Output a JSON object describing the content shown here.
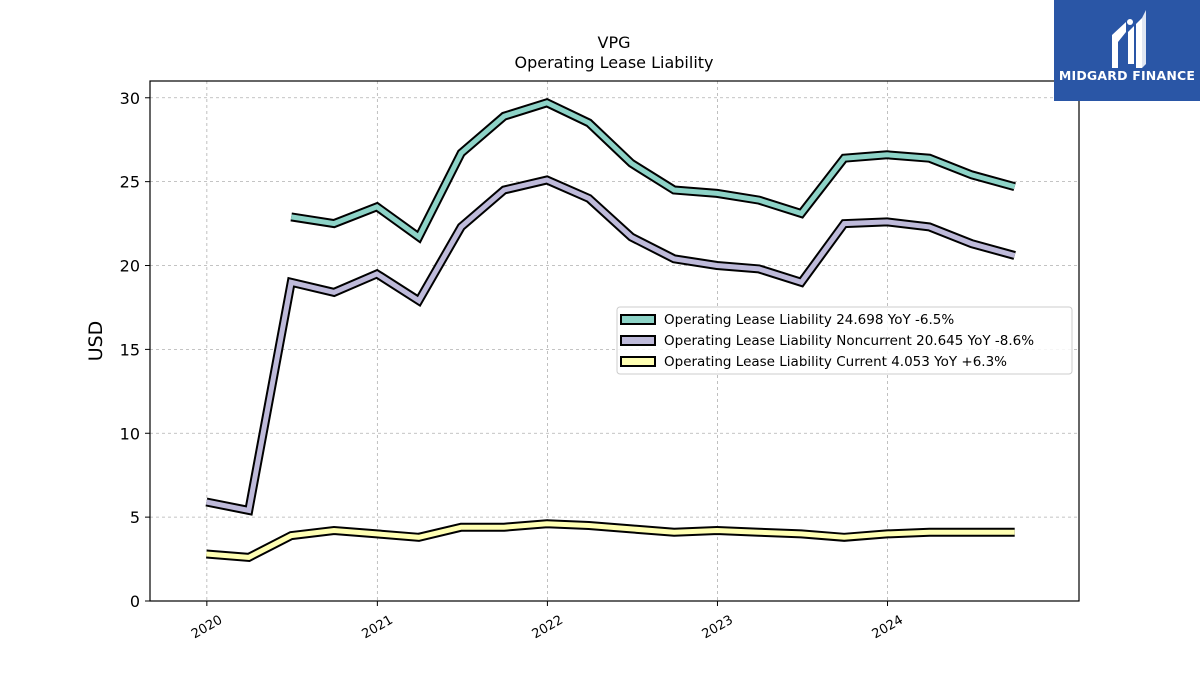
{
  "logo": {
    "name": "MIDGARD FINANCE",
    "icon": "midgard-monogram-icon",
    "bg": "#2a56a6"
  },
  "chart_data": {
    "type": "line",
    "title": "VPG",
    "subtitle": "Operating Lease Liability",
    "ylabel": "USD",
    "xlabel": "",
    "ylim": [
      0,
      31
    ],
    "xlim": [
      "2019-09-01",
      "2025-02-15"
    ],
    "yticks": [
      0,
      5,
      10,
      15,
      20,
      25,
      30
    ],
    "xticks": [
      "2020",
      "2021",
      "2022",
      "2023",
      "2024"
    ],
    "grid": true,
    "legend_position": "center-right",
    "x": [
      "2019-12-31",
      "2020-03-31",
      "2020-06-30",
      "2020-09-30",
      "2020-12-31",
      "2021-03-31",
      "2021-06-30",
      "2021-09-30",
      "2021-12-31",
      "2022-03-31",
      "2022-06-30",
      "2022-09-30",
      "2022-12-31",
      "2023-03-31",
      "2023-06-30",
      "2023-09-30",
      "2023-12-31",
      "2024-03-31",
      "2024-06-30",
      "2024-09-30"
    ],
    "series": [
      {
        "name": "Operating Lease Liability",
        "legend": "Operating Lease Liability  24.698 YoY -6.5%",
        "color": "#8dd3c7",
        "values": [
          null,
          null,
          22.9,
          22.5,
          23.5,
          21.7,
          26.7,
          28.9,
          29.7,
          28.5,
          26.1,
          24.5,
          24.3,
          23.9,
          23.1,
          26.4,
          26.6,
          26.4,
          25.4,
          24.7
        ]
      },
      {
        "name": "Operating Lease Liability Noncurrent",
        "legend": "Operating Lease Liability Noncurrent  20.645 YoY -8.6%",
        "color": "#bebada",
        "values": [
          5.9,
          5.4,
          19.0,
          18.4,
          19.5,
          17.9,
          22.3,
          24.5,
          25.1,
          24.0,
          21.7,
          20.4,
          20.0,
          19.8,
          19.0,
          22.5,
          22.6,
          22.3,
          21.3,
          20.6
        ]
      },
      {
        "name": "Operating Lease Liability Current",
        "legend": "Operating Lease Liability Current  4.053 YoY +6.3%",
        "color": "#ffffb3",
        "values": [
          2.8,
          2.6,
          3.9,
          4.2,
          4.0,
          3.8,
          4.4,
          4.4,
          4.6,
          4.5,
          4.3,
          4.1,
          4.2,
          4.1,
          4.0,
          3.8,
          4.0,
          4.1,
          4.1,
          4.1
        ]
      }
    ]
  }
}
